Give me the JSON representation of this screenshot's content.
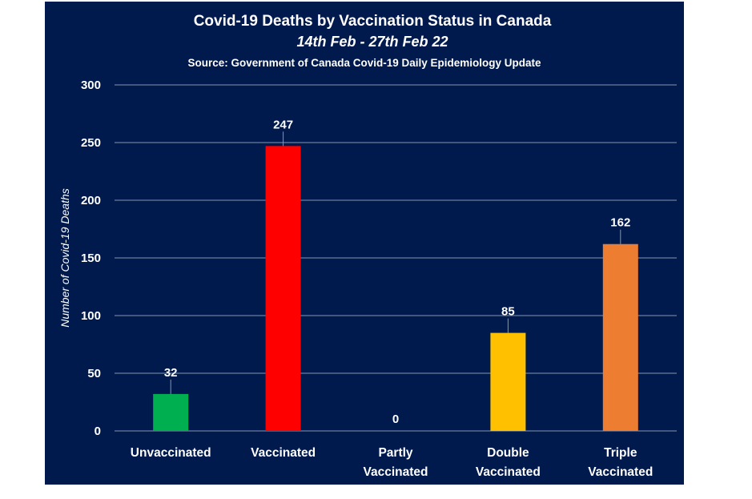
{
  "chart_data": {
    "type": "bar",
    "title": "Covid-19 Deaths by Vaccination Status in Canada",
    "subtitle": "14th Feb - 27th Feb 22",
    "source": "Source: Government of Canada  Covid-19 Daily Epidemiology Update",
    "xlabel": "",
    "ylabel": "Number of Covid-19 Deaths",
    "ylim": [
      0,
      300
    ],
    "yticks": [
      0,
      50,
      100,
      150,
      200,
      250,
      300
    ],
    "grid": true,
    "legend": "none",
    "categories": [
      [
        "Unvaccinated"
      ],
      [
        "Vaccinated"
      ],
      [
        "Partly",
        "Vaccinated"
      ],
      [
        "Double",
        "Vaccinated"
      ],
      [
        "Triple",
        "Vaccinated"
      ]
    ],
    "values": [
      32,
      247,
      0,
      85,
      162
    ],
    "colors": [
      "#00b050",
      "#ff0000",
      "#a5a5a5",
      "#ffc000",
      "#ed7d31"
    ],
    "background_color": "#001a4d",
    "text_color": "#ffffff",
    "gridline_color": "#8497b0"
  }
}
